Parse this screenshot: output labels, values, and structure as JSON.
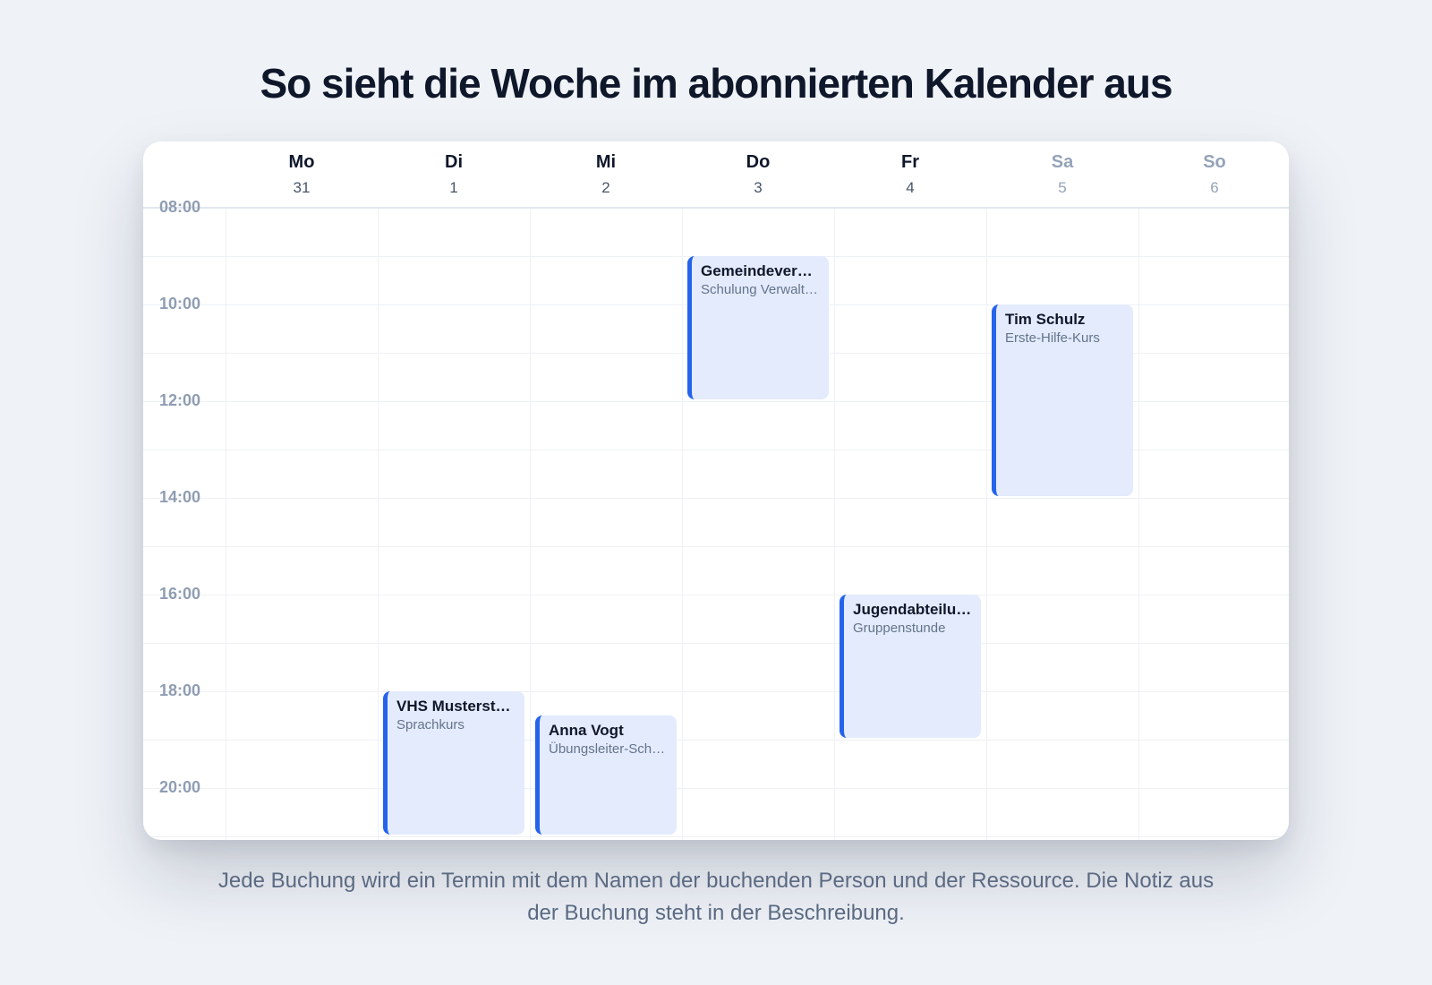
{
  "headline": "So sieht die Woche im abonnierten Kalender aus",
  "days": [
    {
      "name": "Mo",
      "date": "31",
      "weekend": false
    },
    {
      "name": "Di",
      "date": "1",
      "weekend": false
    },
    {
      "name": "Mi",
      "date": "2",
      "weekend": false
    },
    {
      "name": "Do",
      "date": "3",
      "weekend": false
    },
    {
      "name": "Fr",
      "date": "4",
      "weekend": false
    },
    {
      "name": "Sa",
      "date": "5",
      "weekend": true
    },
    {
      "name": "So",
      "date": "6",
      "weekend": true
    }
  ],
  "time_labels": [
    "08:00",
    "10:00",
    "12:00",
    "14:00",
    "16:00",
    "18:00",
    "20:00"
  ],
  "events": [
    {
      "day": 3,
      "start": "09:00",
      "end": "12:00",
      "title": "Gemeindeverwaltung",
      "subtitle": "Schulung Verwaltung"
    },
    {
      "day": 5,
      "start": "10:00",
      "end": "14:00",
      "title": "Tim Schulz",
      "subtitle": "Erste-Hilfe-Kurs"
    },
    {
      "day": 4,
      "start": "16:00",
      "end": "19:00",
      "title": "Jugendabteilung",
      "subtitle": "Gruppenstunde"
    },
    {
      "day": 1,
      "start": "18:00",
      "end": "21:00",
      "title": "VHS Musterstadt",
      "subtitle": "Sprachkurs"
    },
    {
      "day": 2,
      "start": "18:30",
      "end": "21:00",
      "title": "Anna Vogt",
      "subtitle": "Übungsleiter-Schulung"
    }
  ],
  "caption": "Jede Buchung wird ein Termin mit dem Namen der buchenden Person und der Ressource. Die Notiz aus der Buchung steht in der Beschreibung.",
  "colors": {
    "event_accent": "#2563eb",
    "event_fill": "#e3ebfd",
    "weekend_text": "#94a3b8",
    "page_background": "#eff3f8"
  }
}
